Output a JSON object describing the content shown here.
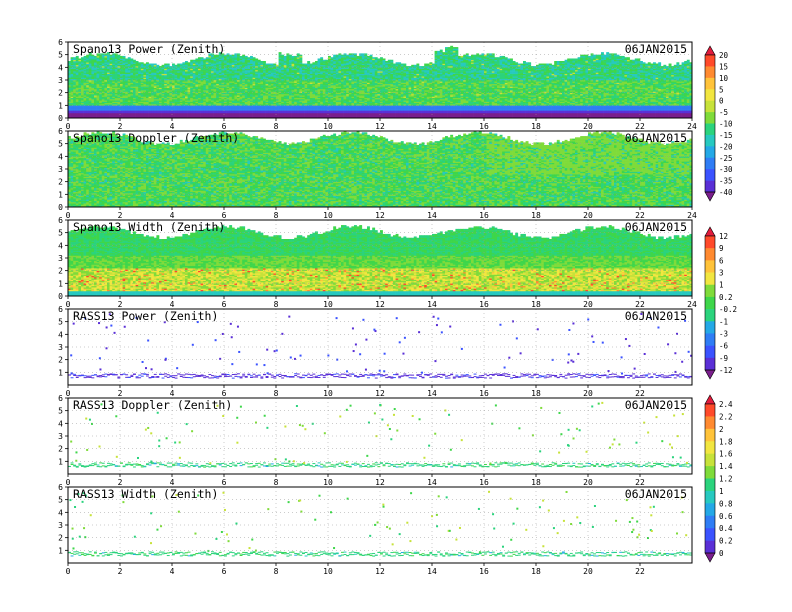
{
  "figure": {
    "date_label": "06JAN2015"
  },
  "colors": {
    "scale_a": [
      "#7a1e8c",
      "#5a2fd6",
      "#3b53ff",
      "#2f7df5",
      "#24a8e6",
      "#27c9c0",
      "#2bd37d",
      "#3ed64a",
      "#7fdb3a",
      "#c7e23a",
      "#f2e640",
      "#ffc33a",
      "#ff8a30",
      "#ff4a2a",
      "#e21b3c"
    ],
    "scale_b": [
      "#7a1e8c",
      "#5a2fd6",
      "#3b53ff",
      "#2f7df5",
      "#24a8e6",
      "#27c9c0",
      "#2bd37d",
      "#3ed64a",
      "#7fdb3a",
      "#c7e23a",
      "#f2e640",
      "#ffc33a",
      "#ff8a30",
      "#ff4a2a",
      "#e21b3c"
    ]
  },
  "colorbars": [
    {
      "id": "cb1",
      "ticks": [
        "20",
        "15",
        "10",
        "5",
        "0",
        "-5",
        "-10",
        "-15",
        "-20",
        "-25",
        "-30",
        "-35",
        "-40"
      ]
    },
    {
      "id": "cb2",
      "ticks": [
        "12",
        "9",
        "6",
        "3",
        "1",
        "0.2",
        "-0.2",
        "-1",
        "-3",
        "-6",
        "-9",
        "-12"
      ]
    },
    {
      "id": "cb3",
      "ticks": [
        "2.4",
        "2.2",
        "2",
        "1.8",
        "1.6",
        "1.4",
        "1.2",
        "1",
        "0.8",
        "0.6",
        "0.4",
        "0.2",
        "0"
      ]
    }
  ],
  "chart_data": [
    {
      "type": "heatmap",
      "title": "Spano13 Power (Zenith)",
      "date": "06JAN2015",
      "xlim": [
        0,
        24
      ],
      "ylim": [
        0,
        6
      ],
      "x_ticks": [
        "0",
        "2",
        "4",
        "6",
        "8",
        "10",
        "12",
        "14",
        "16",
        "18",
        "20",
        "22",
        "24"
      ],
      "y_ticks": [
        "0",
        "1",
        "2",
        "3",
        "4",
        "5",
        "6"
      ],
      "grid": true,
      "pattern": "power",
      "top_km": 4.6,
      "colorbar": "cb1"
    },
    {
      "type": "heatmap",
      "title": "Spano13 Doppler (Zenith)",
      "date": "06JAN2015",
      "xlim": [
        0,
        24
      ],
      "ylim": [
        0,
        6
      ],
      "x_ticks": [
        "0",
        "2",
        "4",
        "6",
        "8",
        "10",
        "12",
        "14",
        "16",
        "18",
        "20",
        "22",
        "24"
      ],
      "y_ticks": [
        "0",
        "1",
        "2",
        "3",
        "4",
        "5",
        "6"
      ],
      "grid": true,
      "pattern": "doppler",
      "top_km": 5.4,
      "colorbar": "cb1"
    },
    {
      "type": "heatmap",
      "title": "Spano13 Width (Zenith)",
      "date": "06JAN2015",
      "xlim": [
        0,
        24
      ],
      "ylim": [
        0,
        6
      ],
      "x_ticks": [
        "0",
        "2",
        "4",
        "6",
        "8",
        "10",
        "12",
        "14",
        "16",
        "18",
        "20",
        "22",
        "24"
      ],
      "y_ticks": [
        "0",
        "1",
        "2",
        "3",
        "4",
        "5",
        "6"
      ],
      "grid": true,
      "pattern": "width",
      "top_km": 5.0,
      "colorbar": "cb2"
    },
    {
      "type": "heatmap",
      "title": "RASS13 Power (Zenith)",
      "date": "06JAN2015",
      "xlim": [
        0,
        24
      ],
      "ylim": [
        0,
        6
      ],
      "x_ticks": [
        "0",
        "2",
        "4",
        "6",
        "8",
        "10",
        "12",
        "14",
        "16",
        "18",
        "20",
        "22"
      ],
      "y_ticks": [
        "1",
        "2",
        "3",
        "4",
        "5",
        "6"
      ],
      "grid": true,
      "pattern": "rass_power",
      "colorbar": "cb2"
    },
    {
      "type": "heatmap",
      "title": "RASS13 Doppler (Zenith)",
      "date": "06JAN2015",
      "xlim": [
        0,
        24
      ],
      "ylim": [
        0,
        6
      ],
      "x_ticks": [
        "0",
        "2",
        "4",
        "6",
        "8",
        "10",
        "12",
        "14",
        "16",
        "18",
        "20",
        "22"
      ],
      "y_ticks": [
        "1",
        "2",
        "3",
        "4",
        "5",
        "6"
      ],
      "grid": true,
      "pattern": "rass_doppler",
      "colorbar": "cb3"
    },
    {
      "type": "heatmap",
      "title": "RASS13 Width (Zenith)",
      "date": "06JAN2015",
      "xlim": [
        0,
        24
      ],
      "ylim": [
        0,
        6
      ],
      "x_ticks": [
        "0",
        "2",
        "4",
        "6",
        "8",
        "10",
        "12",
        "14",
        "16",
        "18",
        "20",
        "22"
      ],
      "y_ticks": [
        "1",
        "2",
        "3",
        "4",
        "5",
        "6"
      ],
      "grid": true,
      "pattern": "rass_width",
      "colorbar": "cb3"
    }
  ]
}
